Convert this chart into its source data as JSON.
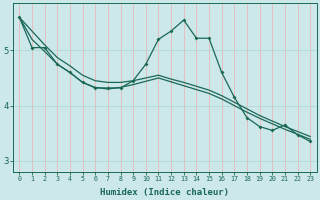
{
  "xlabel": "Humidex (Indice chaleur)",
  "bg_color": "#cce8e8",
  "grid_color_v": "#e8b8b8",
  "grid_color_h": "#b0d8d8",
  "line_color": "#1a6858",
  "x": [
    0,
    1,
    2,
    3,
    4,
    5,
    6,
    7,
    8,
    9,
    10,
    11,
    12,
    13,
    14,
    15,
    16,
    17,
    18,
    19,
    20,
    21,
    22,
    23
  ],
  "y_data": [
    5.6,
    5.05,
    5.05,
    4.75,
    4.6,
    4.42,
    4.32,
    4.32,
    4.32,
    4.45,
    4.75,
    5.2,
    5.35,
    5.55,
    5.22,
    5.22,
    4.6,
    4.15,
    3.78,
    3.62,
    3.55,
    3.65,
    3.47,
    3.35
  ],
  "y_upper": [
    5.6,
    5.35,
    5.1,
    4.87,
    4.72,
    4.55,
    4.45,
    4.42,
    4.42,
    4.45,
    4.5,
    4.55,
    4.48,
    4.42,
    4.35,
    4.28,
    4.18,
    4.06,
    3.94,
    3.82,
    3.72,
    3.62,
    3.53,
    3.44
  ],
  "y_lower": [
    5.6,
    5.2,
    4.98,
    4.75,
    4.6,
    4.42,
    4.33,
    4.3,
    4.33,
    4.38,
    4.44,
    4.5,
    4.43,
    4.36,
    4.29,
    4.22,
    4.12,
    4.0,
    3.88,
    3.77,
    3.67,
    3.57,
    3.48,
    3.39
  ],
  "ylim": [
    2.8,
    5.85
  ],
  "yticks": [
    3,
    4,
    5
  ],
  "xlim": [
    -0.5,
    23.5
  ]
}
